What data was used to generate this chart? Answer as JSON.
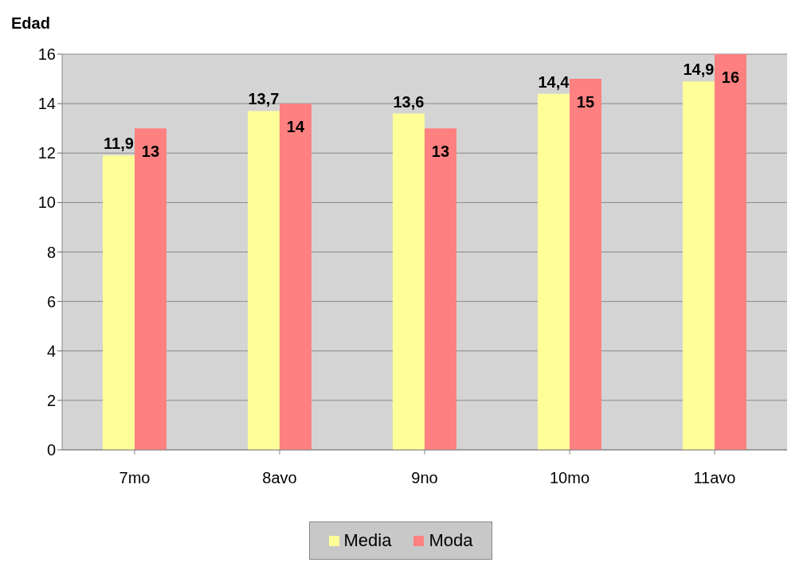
{
  "chart_data": {
    "type": "bar",
    "ylabel": "Edad",
    "categories": [
      "7mo",
      "8avo",
      "9no",
      "10mo",
      "11avo"
    ],
    "series": [
      {
        "name": "Media",
        "color": "#ffff99",
        "values": [
          11.9,
          13.7,
          13.6,
          14.4,
          14.9
        ],
        "value_labels": [
          "11,9",
          "13,7",
          "13,6",
          "14,4",
          "14,9"
        ]
      },
      {
        "name": "Moda",
        "color": "#ff8080",
        "values": [
          13,
          14,
          13,
          15,
          16
        ],
        "value_labels": [
          "13",
          "14",
          "13",
          "15",
          "16"
        ]
      }
    ],
    "ylim": [
      0,
      16
    ],
    "yticks": [
      0,
      2,
      4,
      6,
      8,
      10,
      12,
      14,
      16
    ],
    "grid": "y",
    "legend": "bottom"
  }
}
